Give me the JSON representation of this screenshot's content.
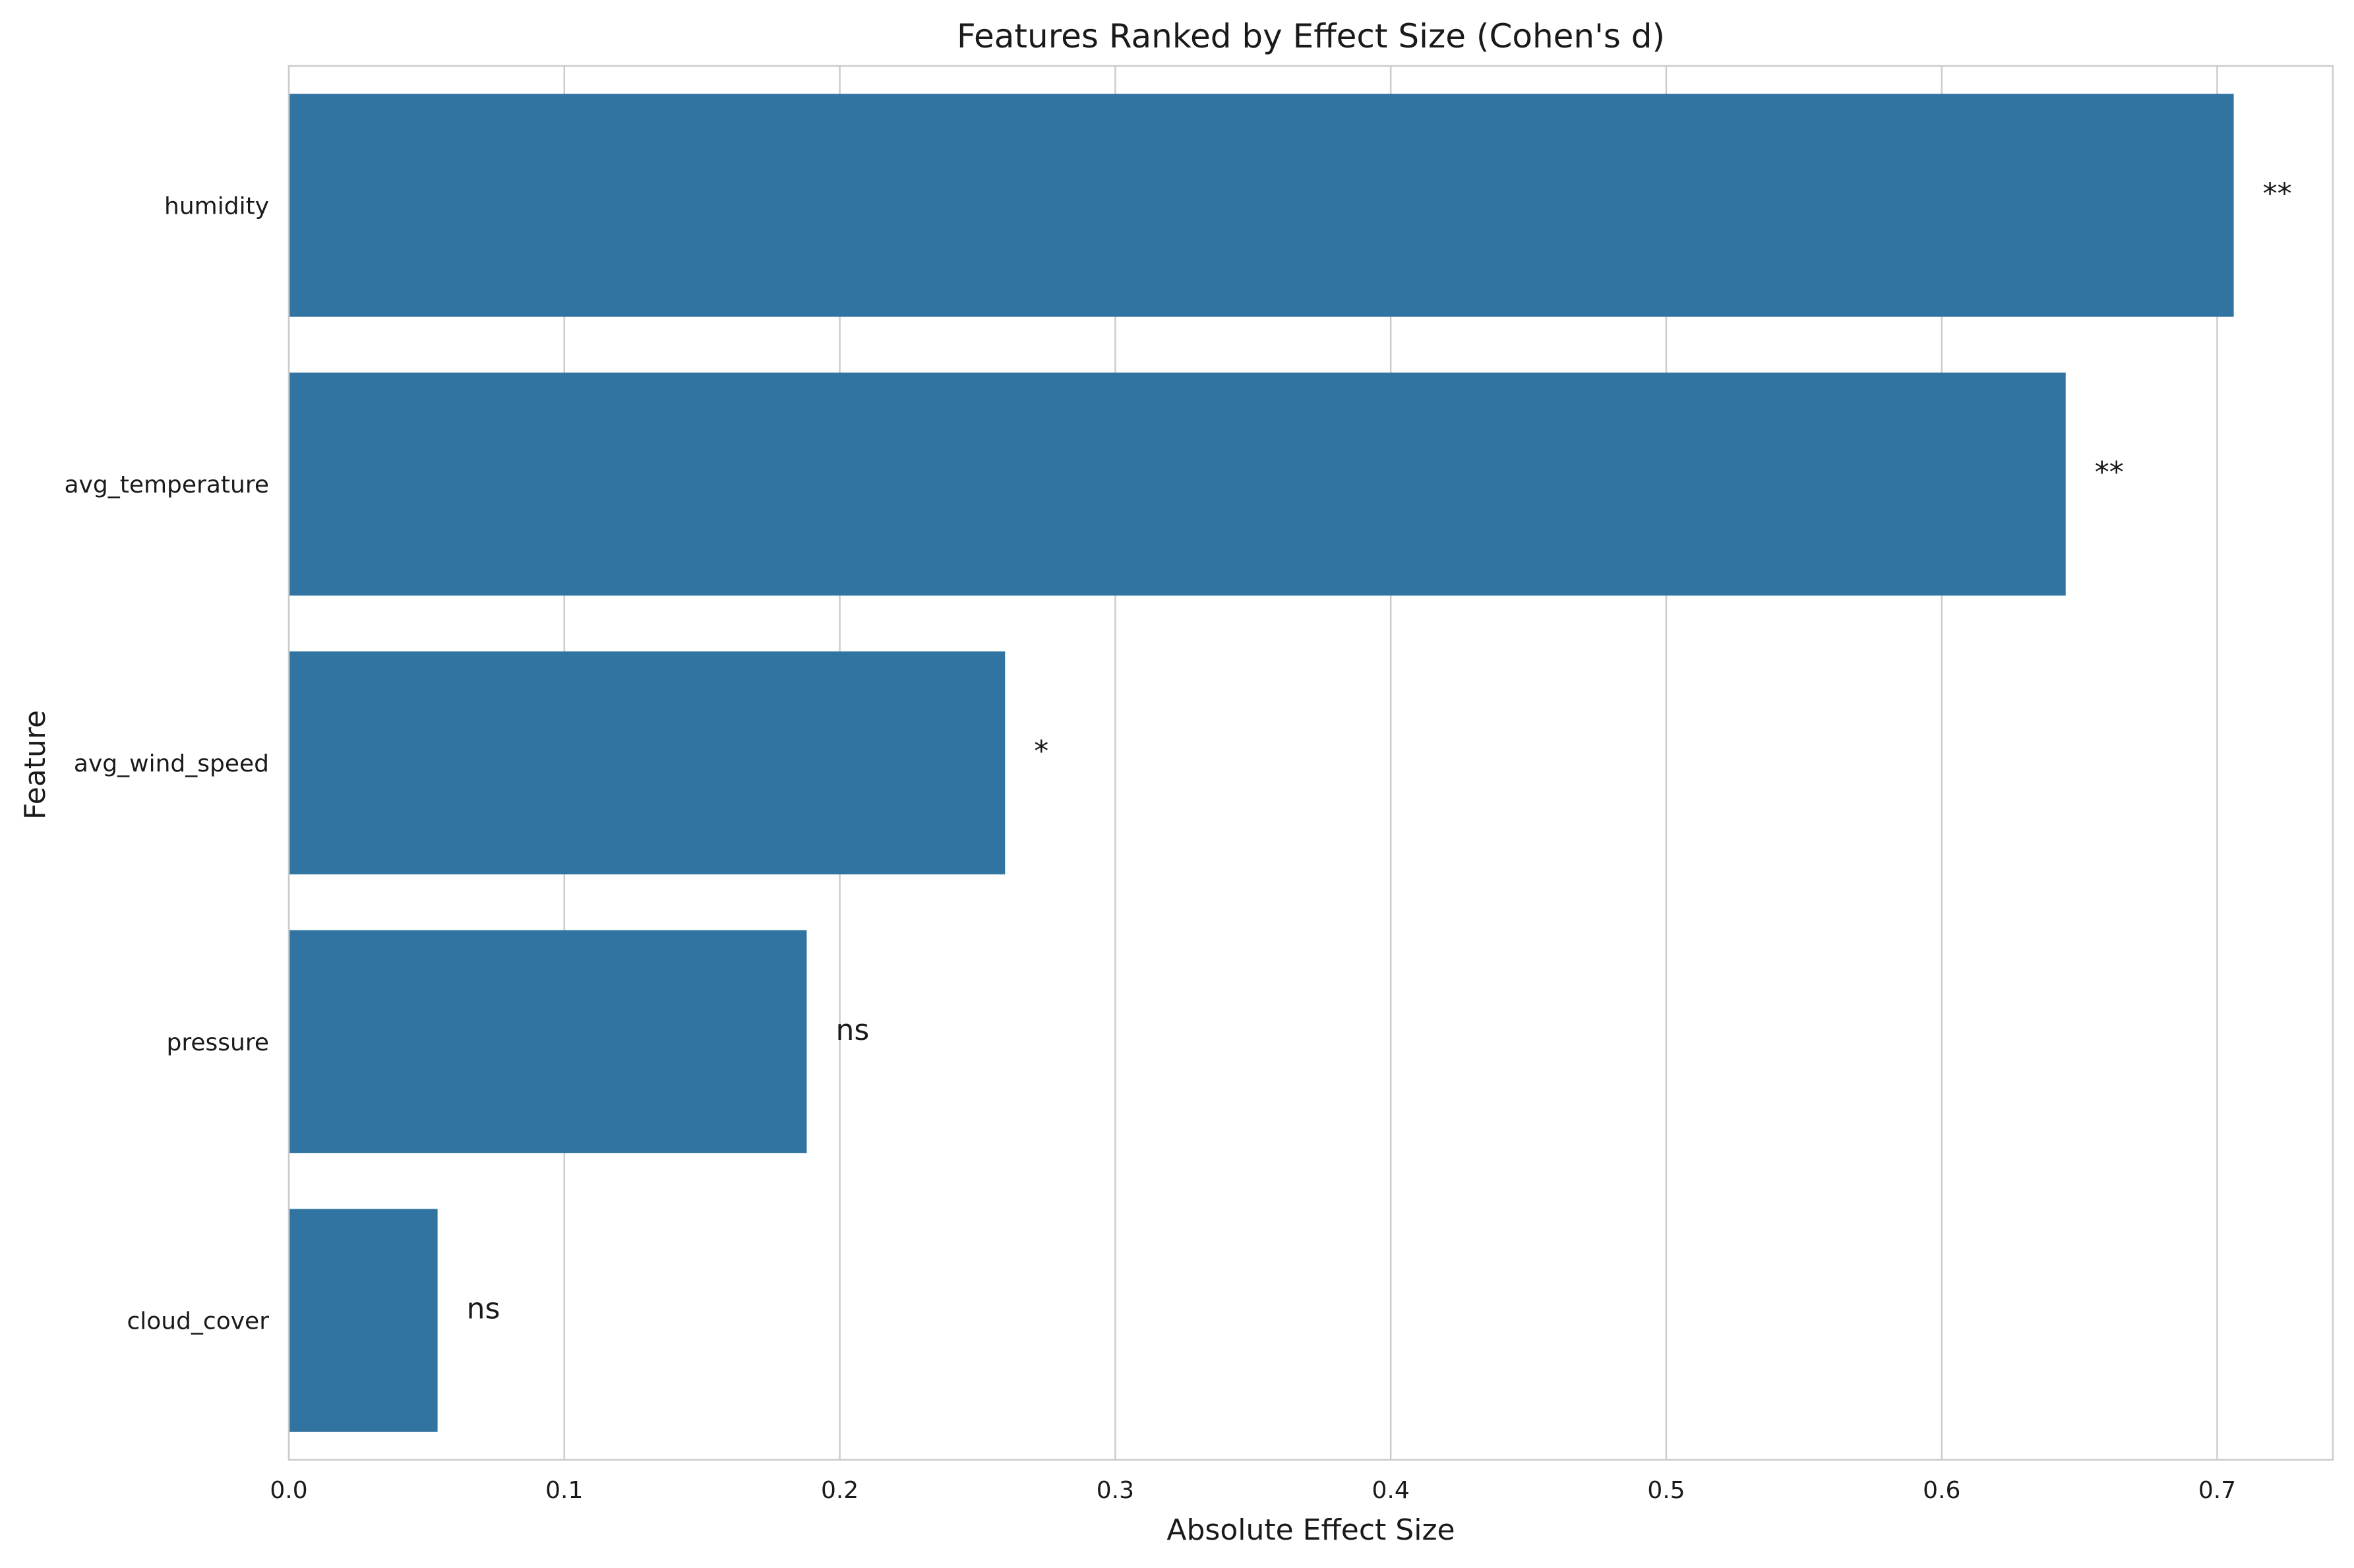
{
  "chart_data": {
    "type": "bar",
    "orientation": "horizontal",
    "title": "Features Ranked by Effect Size (Cohen's d)",
    "xlabel": "Absolute Effect Size",
    "ylabel": "Feature",
    "xlim": [
      0,
      0.742
    ],
    "xticks": [
      0.0,
      0.1,
      0.2,
      0.3,
      0.4,
      0.5,
      0.6,
      0.7
    ],
    "xtick_labels": [
      "0.0",
      "0.1",
      "0.2",
      "0.3",
      "0.4",
      "0.5",
      "0.6",
      "0.7"
    ],
    "categories": [
      "humidity",
      "avg_temperature",
      "avg_wind_speed",
      "pressure",
      "cloud_cover"
    ],
    "values": [
      0.706,
      0.645,
      0.26,
      0.188,
      0.054
    ],
    "significance": [
      "**",
      "**",
      "*",
      "ns",
      "ns"
    ],
    "grid": true,
    "grid_axis": "x",
    "bar_color": "#3274a1",
    "grid_color": "#cccccc"
  }
}
